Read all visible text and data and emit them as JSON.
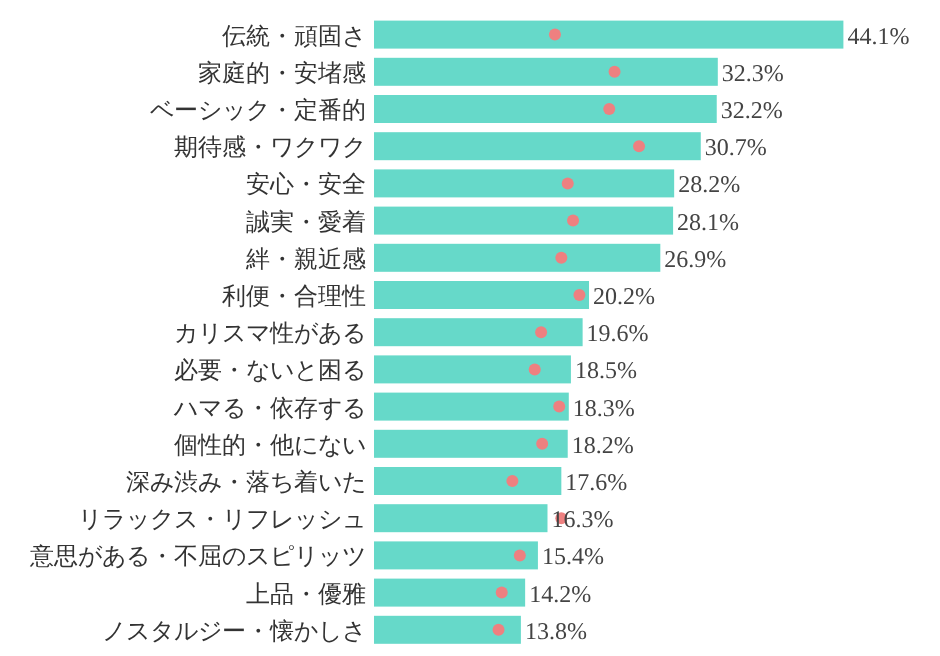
{
  "chart_data": {
    "type": "bar",
    "orientation": "horizontal",
    "categories": [
      "伝統・頑固さ",
      "家庭的・安堵感",
      "ベーシック・定番的",
      "期待感・ワクワク",
      "安心・安全",
      "誠実・愛着",
      "絆・親近感",
      "利便・合理性",
      "カリスマ性がある",
      "必要・ないと困る",
      "ハマる・依存する",
      "個性的・他にない",
      "深み渋み・落ち着いた",
      "リラックス・リフレッシュ",
      "意思がある・不屈のスピリッツ",
      "上品・優雅",
      "ノスタルジー・懐かしさ"
    ],
    "tick_labels": "y",
    "series": [
      {
        "type": "bar",
        "color": "#66d9c9",
        "values": [
          44.1,
          32.3,
          32.2,
          30.7,
          28.2,
          28.1,
          26.9,
          20.2,
          19.6,
          18.5,
          18.3,
          18.2,
          17.6,
          16.3,
          15.4,
          14.2,
          13.8
        ],
        "value_labels": [
          "44.1%",
          "32.3%",
          "32.2%",
          "30.7%",
          "28.2%",
          "28.1%",
          "26.9%",
          "20.2%",
          "19.6%",
          "18.5%",
          "18.3%",
          "18.2%",
          "17.6%",
          "16.3%",
          "15.4%",
          "14.2%",
          "13.8%"
        ]
      },
      {
        "type": "scatter",
        "color": "#ee8080",
        "marker": "circle",
        "values": [
          17.0,
          22.6,
          22.1,
          24.9,
          18.2,
          18.7,
          17.6,
          19.3,
          15.7,
          15.1,
          17.4,
          15.8,
          13.0,
          17.6,
          13.7,
          12.0,
          11.7
        ]
      }
    ]
  }
}
